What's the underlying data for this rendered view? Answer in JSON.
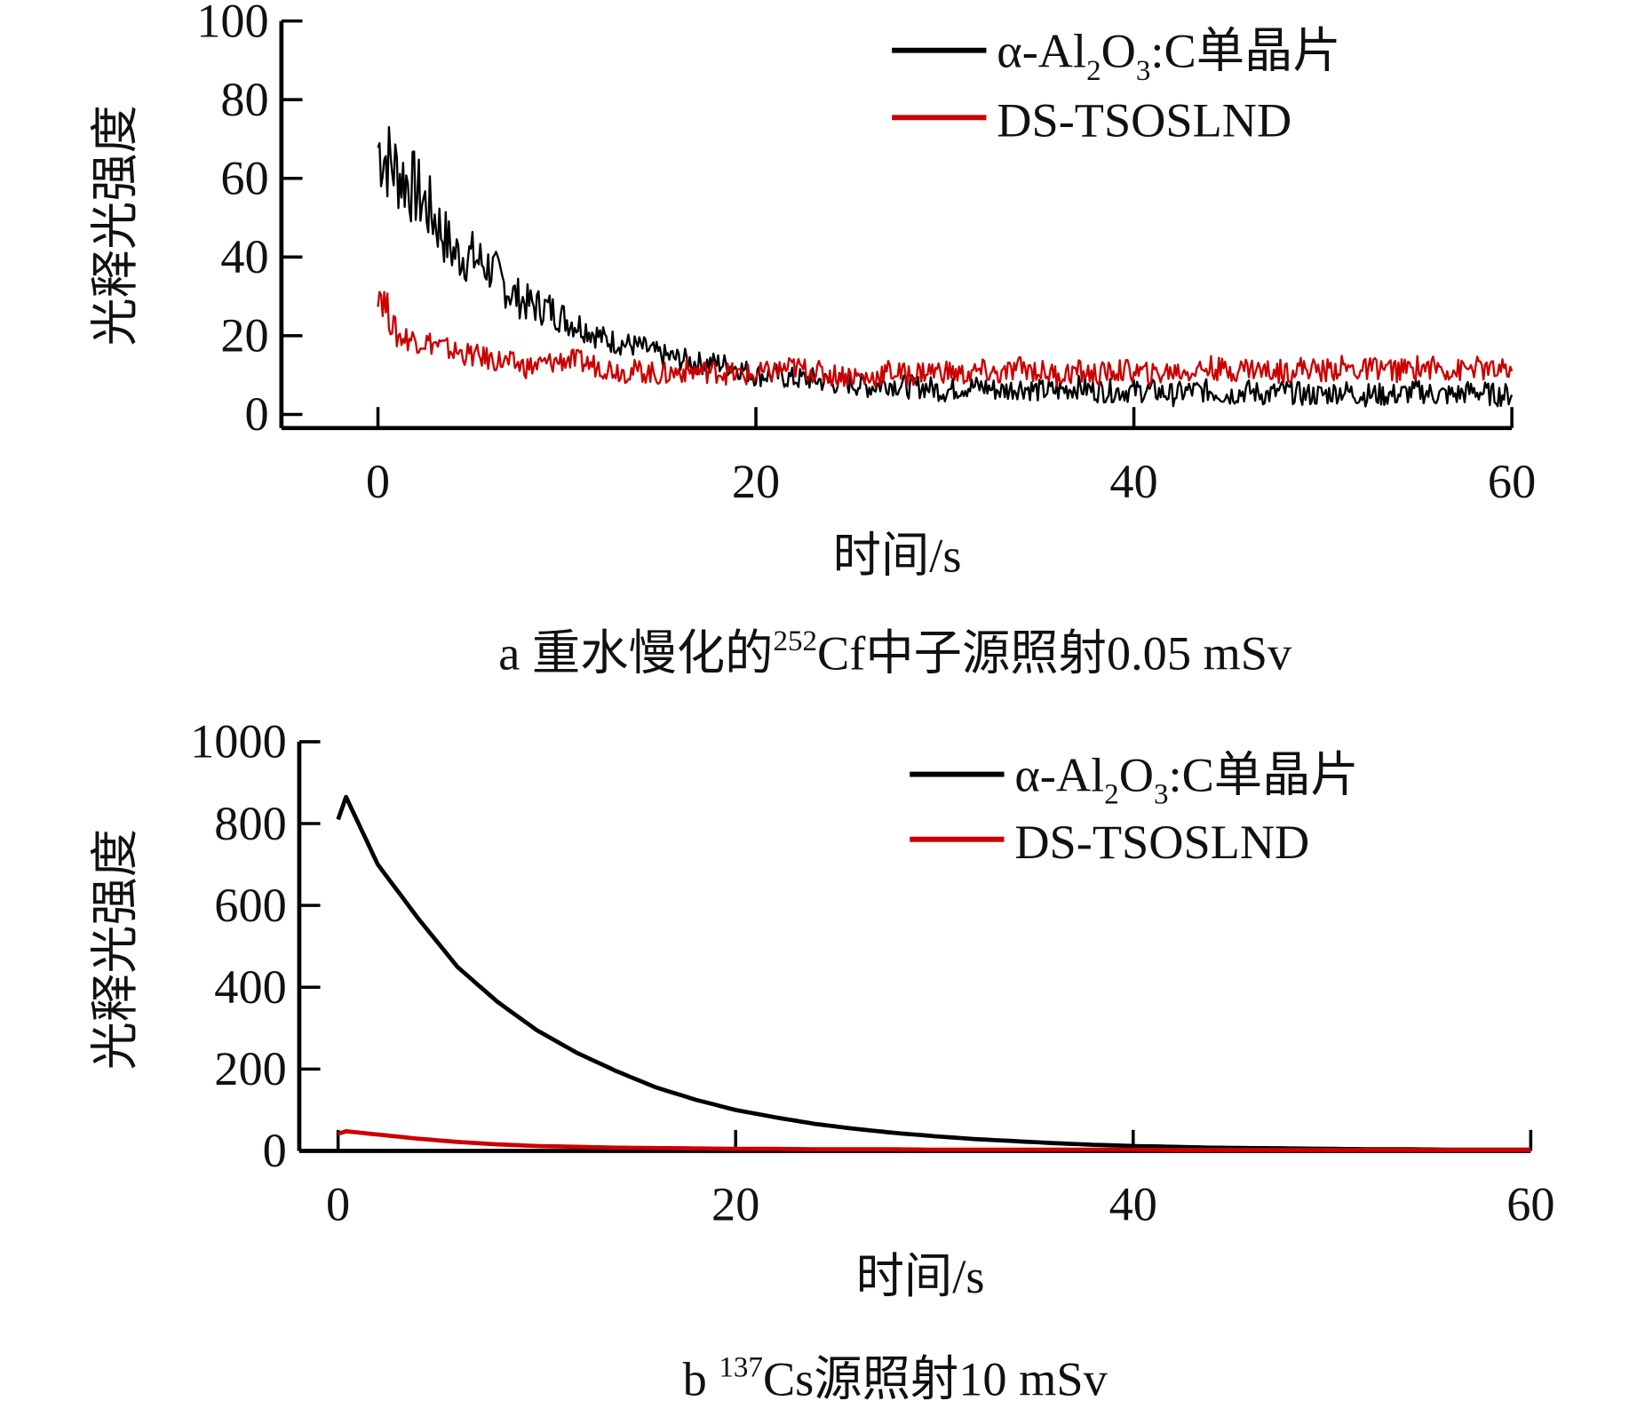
{
  "chart_data": [
    {
      "type": "line",
      "caption": "a  重水慢化的²⁵²Cf中子源照射0.05 mSv",
      "caption_parts": {
        "prefix": "a  重水慢化的",
        "sup": "252",
        "suffix": "Cf中子源照射0.05 mSv"
      },
      "xlabel": "时间/s",
      "ylabel": "光释光强度",
      "xlim": [
        -5,
        60
      ],
      "ylim": [
        0,
        100
      ],
      "xticks": [
        "0",
        "20",
        "40",
        "60"
      ],
      "xtick_values": [
        0,
        20,
        40,
        60
      ],
      "yticks": [
        "0",
        "20",
        "40",
        "60",
        "80",
        "100"
      ],
      "ytick_values": [
        0,
        20,
        40,
        60,
        80,
        100
      ],
      "legend_position": "top-right",
      "x": [
        0,
        1,
        2,
        3,
        4,
        5,
        6,
        7,
        8,
        9,
        10,
        11,
        12,
        13,
        14,
        15,
        16,
        17,
        18,
        19,
        20,
        21,
        22,
        23,
        24,
        25,
        26,
        27,
        28,
        29,
        30,
        31,
        32,
        33,
        34,
        35,
        36,
        37,
        38,
        39,
        40,
        41,
        42,
        43,
        44,
        45,
        46,
        47,
        48,
        49,
        50,
        51,
        52,
        53,
        54,
        55,
        56,
        57,
        58,
        59,
        60
      ],
      "series": [
        {
          "name": "α-Al2O3:C单晶片",
          "legend": {
            "pre": "α-Al",
            "sub1": "2",
            "mid": "O",
            "sub2": "3",
            "post": ":C单晶片"
          },
          "color": "#000000",
          "values": [
            68,
            62,
            57,
            50,
            41,
            40,
            37,
            31,
            28,
            27,
            24,
            22,
            19,
            18,
            17,
            15,
            14,
            13,
            13,
            12,
            10,
            10,
            9,
            9,
            8,
            8,
            7,
            8,
            7,
            7,
            6,
            7,
            7,
            6,
            7,
            6,
            6,
            7,
            6,
            6,
            6,
            6,
            5,
            6,
            6,
            5,
            6,
            5,
            6,
            5,
            5,
            6,
            5,
            5,
            5,
            6,
            5,
            5,
            6,
            5,
            5
          ]
        },
        {
          "name": "DS-TSOSLND",
          "color": "#cc0000",
          "values": [
            33,
            20,
            19,
            18,
            16,
            15,
            14,
            13,
            12,
            13,
            14,
            13,
            12,
            11,
            11,
            10,
            11,
            11,
            11,
            10,
            10,
            11,
            12,
            11,
            10,
            10,
            9,
            11,
            10,
            11,
            11,
            10,
            11,
            10,
            12,
            11,
            10,
            11,
            10,
            11,
            11,
            10,
            11,
            11,
            12,
            11,
            12,
            11,
            11,
            12,
            11,
            12,
            11,
            12,
            11,
            12,
            12,
            11,
            12,
            11,
            11
          ]
        }
      ]
    },
    {
      "type": "line",
      "caption_parts": {
        "prefix": "b  ",
        "sup": "137",
        "suffix": "Cs源照射10 mSv"
      },
      "xlabel": "时间/s",
      "ylabel": "光释光强度",
      "xlim": [
        -1,
        60
      ],
      "ylim": [
        0,
        1000
      ],
      "xticks": [
        "0",
        "20",
        "40",
        "60"
      ],
      "xtick_values": [
        0,
        20,
        40,
        60
      ],
      "yticks": [
        "0",
        "200",
        "400",
        "600",
        "800",
        "1000"
      ],
      "ytick_values": [
        0,
        200,
        400,
        600,
        800,
        1000
      ],
      "legend_position": "top-right",
      "x": [
        0,
        0.4,
        2,
        4,
        6,
        8,
        10,
        12,
        14,
        16,
        18,
        20,
        22,
        24,
        26,
        28,
        30,
        32,
        34,
        36,
        38,
        40,
        42,
        44,
        46,
        48,
        50,
        52,
        54,
        56,
        58,
        60
      ],
      "series": [
        {
          "name": "α-Al2O3:C单晶片",
          "legend": {
            "pre": "α-Al",
            "sub1": "2",
            "mid": "O",
            "sub2": "3",
            "post": ":C单晶片"
          },
          "color": "#000000",
          "values": [
            810,
            865,
            700,
            570,
            450,
            365,
            295,
            240,
            195,
            155,
            125,
            100,
            82,
            66,
            54,
            44,
            36,
            29,
            24,
            19,
            15,
            12,
            10,
            8,
            7,
            6,
            5,
            4,
            4,
            3,
            3,
            3
          ]
        },
        {
          "name": "DS-TSOSLND",
          "color": "#cc0000",
          "values": [
            42,
            48,
            40,
            30,
            22,
            16,
            12,
            10,
            8,
            7,
            6,
            5,
            5,
            4,
            4,
            4,
            3,
            3,
            3,
            3,
            3,
            3,
            2,
            2,
            2,
            2,
            2,
            2,
            2,
            2,
            2,
            2
          ]
        }
      ]
    }
  ]
}
